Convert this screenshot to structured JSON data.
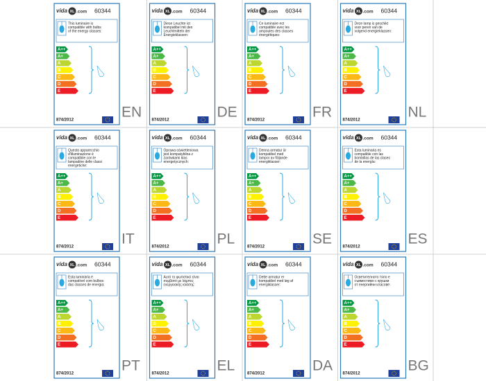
{
  "brand": {
    "prefix": "vida",
    "mark": "XL",
    "suffix": ".com"
  },
  "product_code": "60344",
  "regulation": "874/2012",
  "energy_classes": [
    "A++",
    "A+",
    "A",
    "B",
    "C",
    "D",
    "E"
  ],
  "labels": [
    {
      "language": "EN",
      "text": [
        "This luminaire is",
        "compatible with bulbs",
        "of the energy classes:"
      ]
    },
    {
      "language": "DE",
      "text": [
        "Diese Leuchte ist",
        "kompatibel mit den",
        "Leuchtmitteln der",
        "Energieklassen:"
      ]
    },
    {
      "language": "FR",
      "text": [
        "Ce luminaire est",
        "compatible avec les",
        "ampoules des classes",
        "énergétiques:"
      ]
    },
    {
      "language": "NL",
      "text": [
        "Deze lamp is geschikt",
        "voor peren van de",
        "volgend energieklassen:"
      ]
    },
    {
      "language": "IT",
      "text": [
        "Questo apparecchio",
        "d'illuminazione è",
        "compatibile con le",
        "lampadine delle classi",
        "energetiche:"
      ]
    },
    {
      "language": "PL",
      "text": [
        "Oprawa oświetleniowa",
        "jest kompatybilna z",
        "żarówkami klas",
        "energetycznych:"
      ]
    },
    {
      "language": "SE",
      "text": [
        "Denna armatur är",
        "kompatibel med",
        "lampor av följande",
        "energiklasser:"
      ]
    },
    {
      "language": "ES",
      "text": [
        "Esta luminaria es",
        "compatible con las",
        "bombillas de las clases",
        "de la energía:"
      ]
    },
    {
      "language": "PT",
      "text": [
        "Esta luminária é",
        "compatível com bulbos",
        "das classes de energia:"
      ]
    },
    {
      "language": "EL",
      "text": [
        "Αυτό το φωτιστικό είναι",
        "συμβατό με λάμπες",
        "ενεργειακής κλάσης:"
      ]
    },
    {
      "language": "DA",
      "text": [
        "Dette armatur er",
        "kompatibel med løg af",
        "energiklasser:"
      ]
    },
    {
      "language": "BG",
      "text": [
        "Осветителното тяло е",
        "съвместимо с крушки",
        "от енергийни класове:"
      ]
    }
  ]
}
